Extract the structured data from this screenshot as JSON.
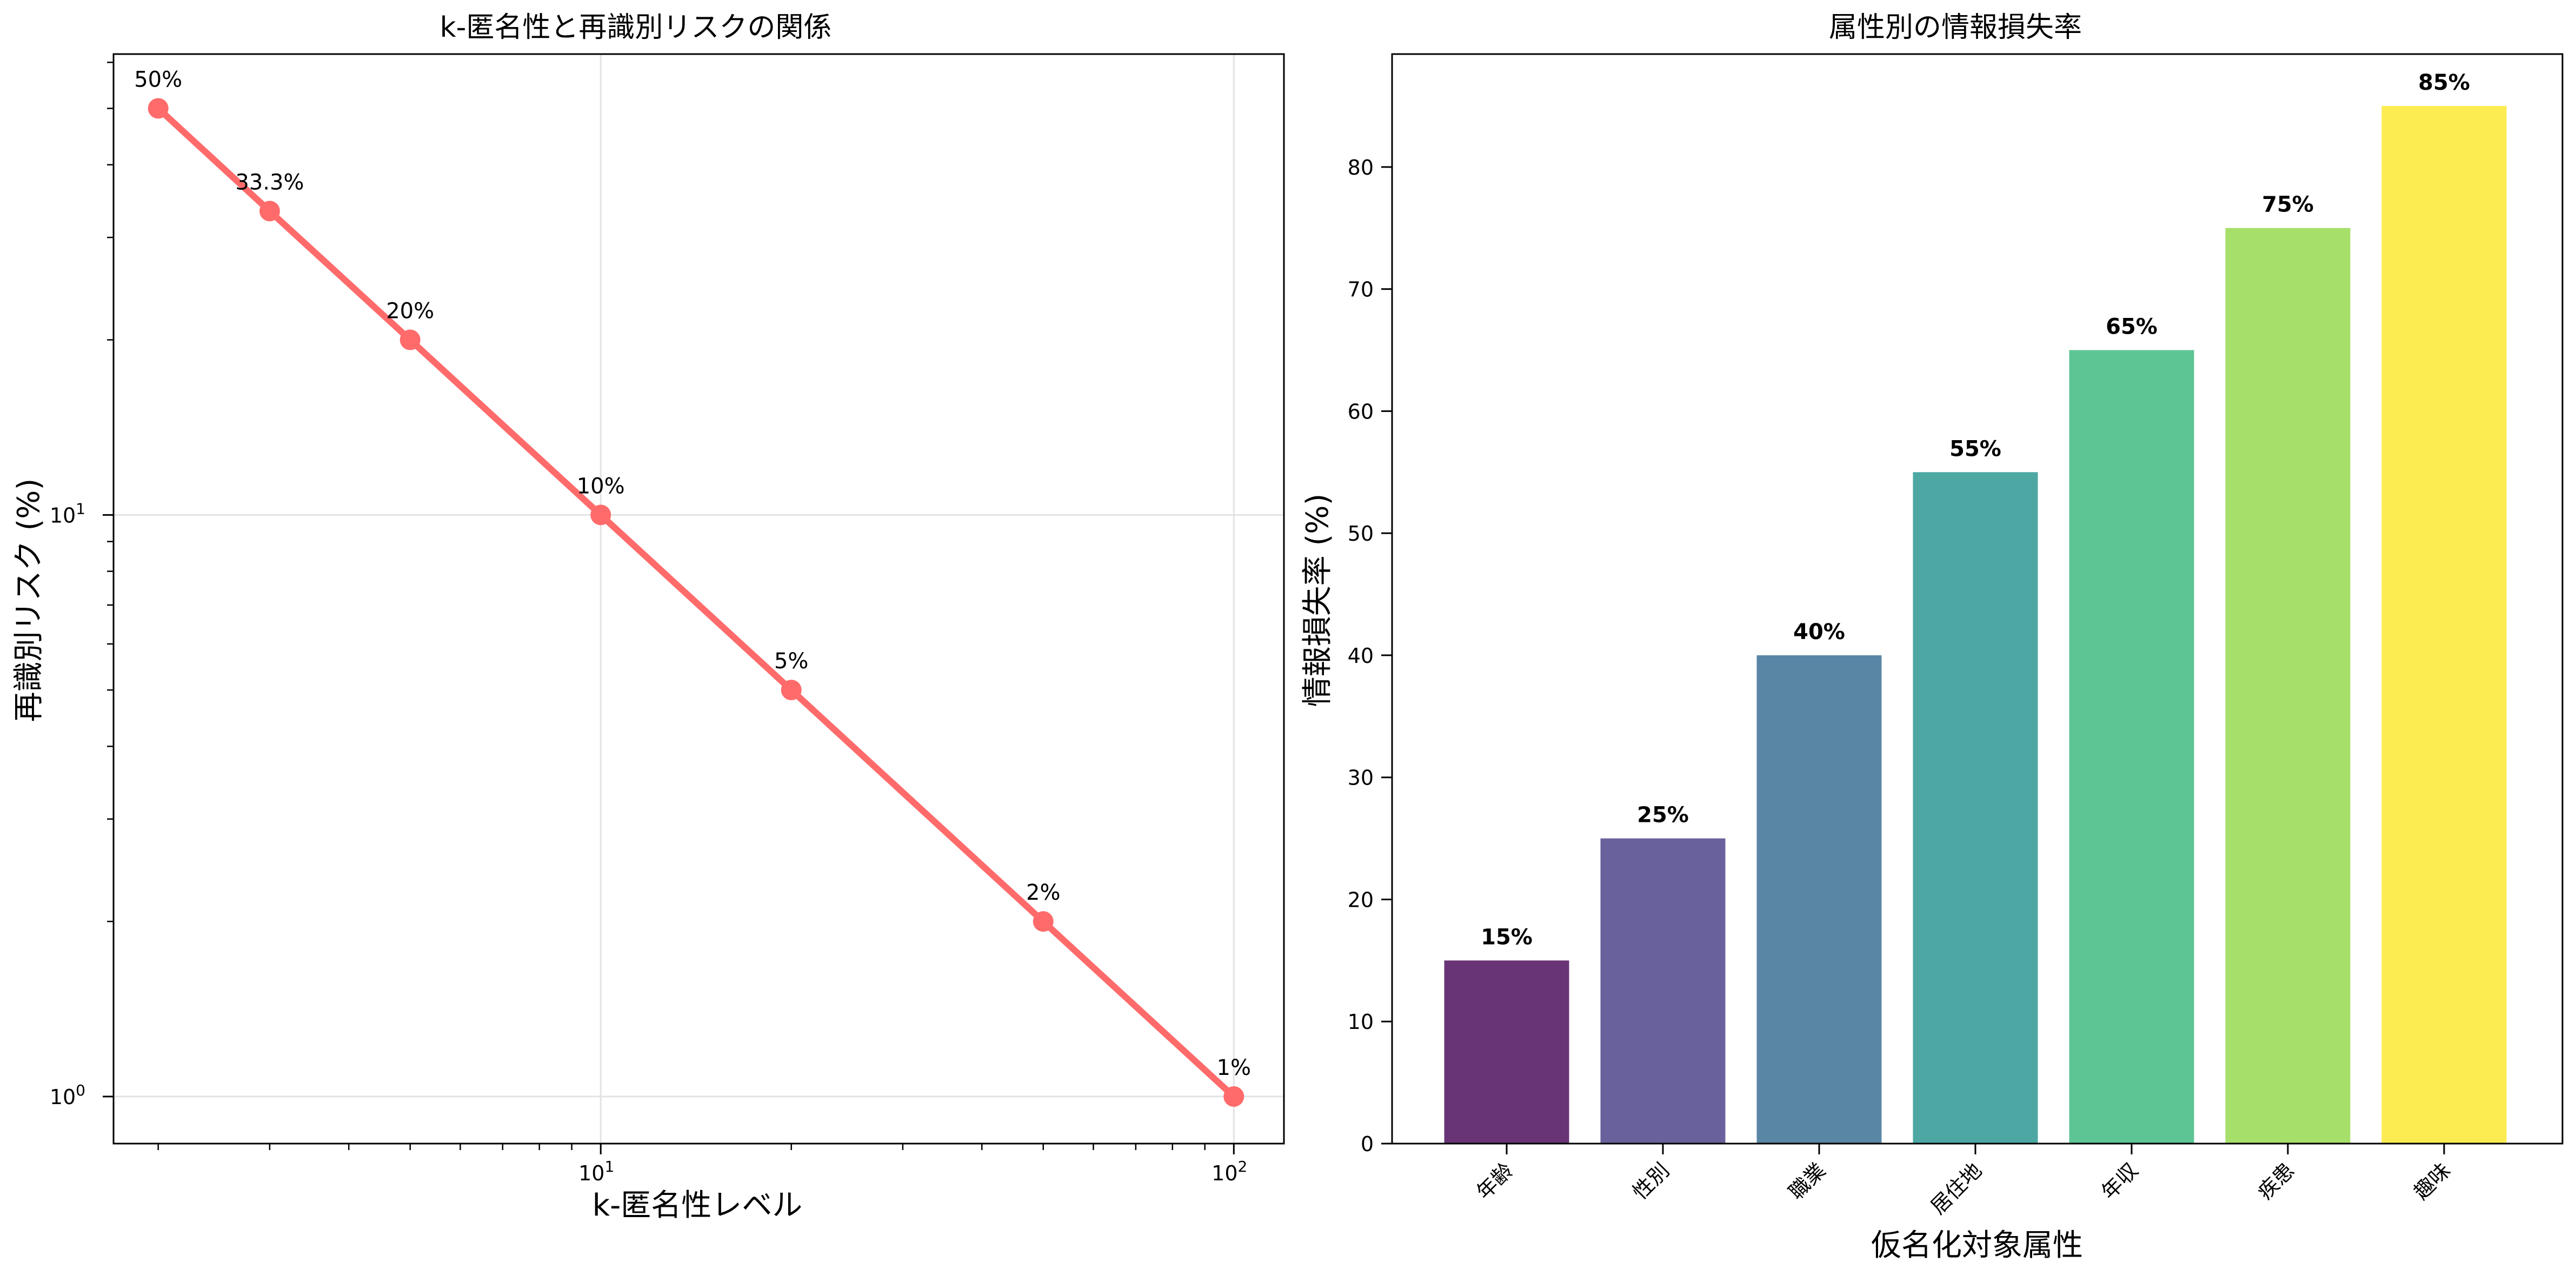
{
  "chart_data": [
    {
      "type": "line",
      "title": "k-匿名性と再識別リスクの関係",
      "xlabel": "k-匿名性レベル",
      "ylabel": "再識別リスク (%)",
      "xscale": "log",
      "yscale": "log",
      "x": [
        2,
        3,
        5,
        10,
        20,
        50,
        100
      ],
      "y": [
        50,
        33.3,
        20,
        10,
        5,
        2,
        1
      ],
      "point_labels": [
        "50%",
        "33.3%",
        "20%",
        "10%",
        "5%",
        "2%",
        "1%"
      ],
      "xlim": [
        1.7,
        120
      ],
      "ylim": [
        0.83,
        62
      ],
      "xticks": [
        {
          "base": "10",
          "exp": "1",
          "value": 10
        },
        {
          "base": "10",
          "exp": "2",
          "value": 100
        }
      ],
      "yticks": [
        {
          "base": "10",
          "exp": "0",
          "value": 1
        },
        {
          "base": "10",
          "exp": "1",
          "value": 10
        }
      ],
      "grid": true,
      "color": "#ff6b6b"
    },
    {
      "type": "bar",
      "title": "属性別の情報損失率",
      "xlabel": "仮名化対象属性",
      "ylabel": "情報損失率 (%)",
      "categories": [
        "年齢",
        "性別",
        "職業",
        "居住地",
        "年収",
        "疾患",
        "趣味"
      ],
      "values": [
        15,
        25,
        40,
        55,
        65,
        75,
        85
      ],
      "value_labels": [
        "15%",
        "25%",
        "40%",
        "55%",
        "65%",
        "75%",
        "85%"
      ],
      "ylim": [
        0,
        89.25
      ],
      "yticks": [
        "0",
        "10",
        "20",
        "30",
        "40",
        "50",
        "60",
        "70",
        "80"
      ],
      "grid": false,
      "colors": [
        "#440154",
        "#443983",
        "#31688e",
        "#21918c",
        "#35b779",
        "#90d743",
        "#fde725"
      ]
    }
  ]
}
